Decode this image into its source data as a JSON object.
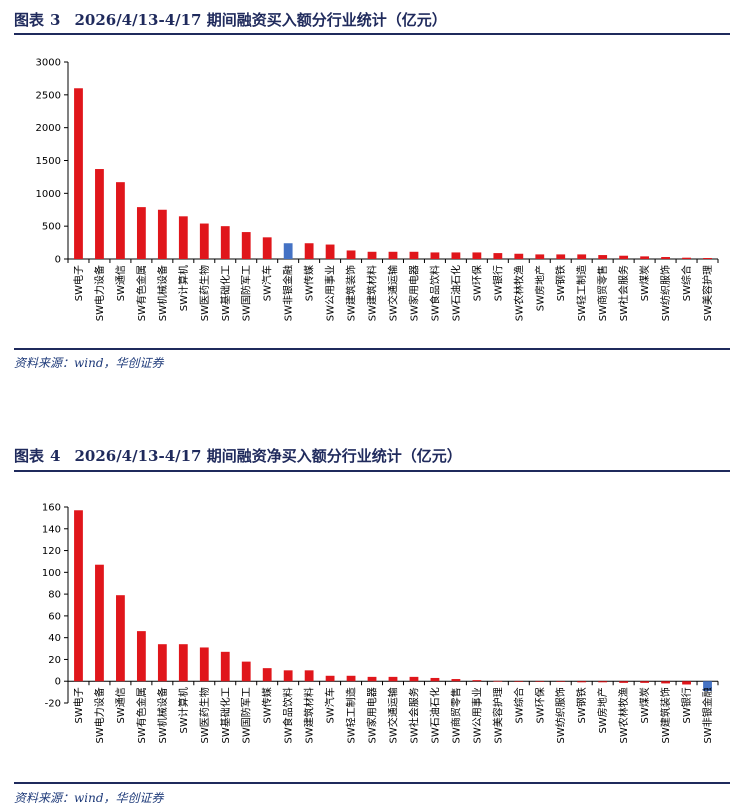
{
  "figures": [
    {
      "label": "图表",
      "number": "3",
      "title": "2026/4/13-4/17 期间融资买入额分行业统计（亿元）",
      "source": "资料来源：wind，华创证券",
      "chart_data": {
        "type": "bar",
        "title": "",
        "xlabel": "",
        "ylabel": "",
        "ylim": [
          0,
          3000
        ],
        "yticks": [
          0,
          500,
          1000,
          1500,
          2000,
          2500,
          3000
        ],
        "grid": false,
        "colors": {
          "default": "#e0161b",
          "highlight": "#4472c4"
        },
        "highlight": [
          "SW非银金融"
        ],
        "categories": [
          "SW电子",
          "SW电力设备",
          "SW通信",
          "SW有色金属",
          "SW机械设备",
          "SW计算机",
          "SW医药生物",
          "SW基础化工",
          "SW国防军工",
          "SW汽车",
          "SW非银金融",
          "SW传媒",
          "SW公用事业",
          "SW建筑装饰",
          "SW建筑材料",
          "SW交通运输",
          "SW家用电器",
          "SW食品饮料",
          "SW石油石化",
          "SW环保",
          "SW银行",
          "SW农林牧渔",
          "SW房地产",
          "SW钢铁",
          "SW轻工制造",
          "SW商贸零售",
          "SW社会服务",
          "SW煤炭",
          "SW纺织服饰",
          "SW综合",
          "SW美容护理"
        ],
        "values": [
          2600,
          1370,
          1170,
          790,
          750,
          650,
          540,
          500,
          410,
          330,
          240,
          240,
          220,
          130,
          110,
          110,
          110,
          100,
          100,
          100,
          90,
          80,
          70,
          70,
          70,
          60,
          50,
          40,
          30,
          20,
          15
        ]
      }
    },
    {
      "label": "图表",
      "number": "4",
      "title": "2026/4/13-4/17 期间融资净买入额分行业统计（亿元）",
      "source": "资料来源：wind，华创证券",
      "chart_data": {
        "type": "bar",
        "title": "",
        "xlabel": "",
        "ylabel": "",
        "ylim": [
          -20,
          160
        ],
        "yticks": [
          -20,
          0,
          20,
          40,
          60,
          80,
          100,
          120,
          140,
          160
        ],
        "grid": false,
        "colors": {
          "default": "#e0161b",
          "highlight": "#4472c4"
        },
        "highlight": [
          "SW非银金融"
        ],
        "categories": [
          "SW电子",
          "SW电力设备",
          "SW通信",
          "SW有色金属",
          "SW机械设备",
          "SW计算机",
          "SW医药生物",
          "SW基础化工",
          "SW国防军工",
          "SW传媒",
          "SW食品饮料",
          "SW建筑材料",
          "SW汽车",
          "SW轻工制造",
          "SW家用电器",
          "SW交通运输",
          "SW社会服务",
          "SW石油石化",
          "SW商贸零售",
          "SW公用事业",
          "SW美容护理",
          "SW综合",
          "SW环保",
          "SW纺织服饰",
          "SW钢铁",
          "SW房地产",
          "SW农林牧渔",
          "SW煤炭",
          "SW建筑装饰",
          "SW银行",
          "SW非银金融"
        ],
        "values": [
          157,
          107,
          79,
          46,
          34,
          34,
          31,
          27,
          18,
          12,
          10,
          10,
          5,
          5,
          4,
          4,
          4,
          3,
          2,
          1,
          0.3,
          0,
          -0.3,
          -0.5,
          -1,
          -1,
          -1.5,
          -1.5,
          -2,
          -3,
          -9
        ]
      }
    }
  ]
}
